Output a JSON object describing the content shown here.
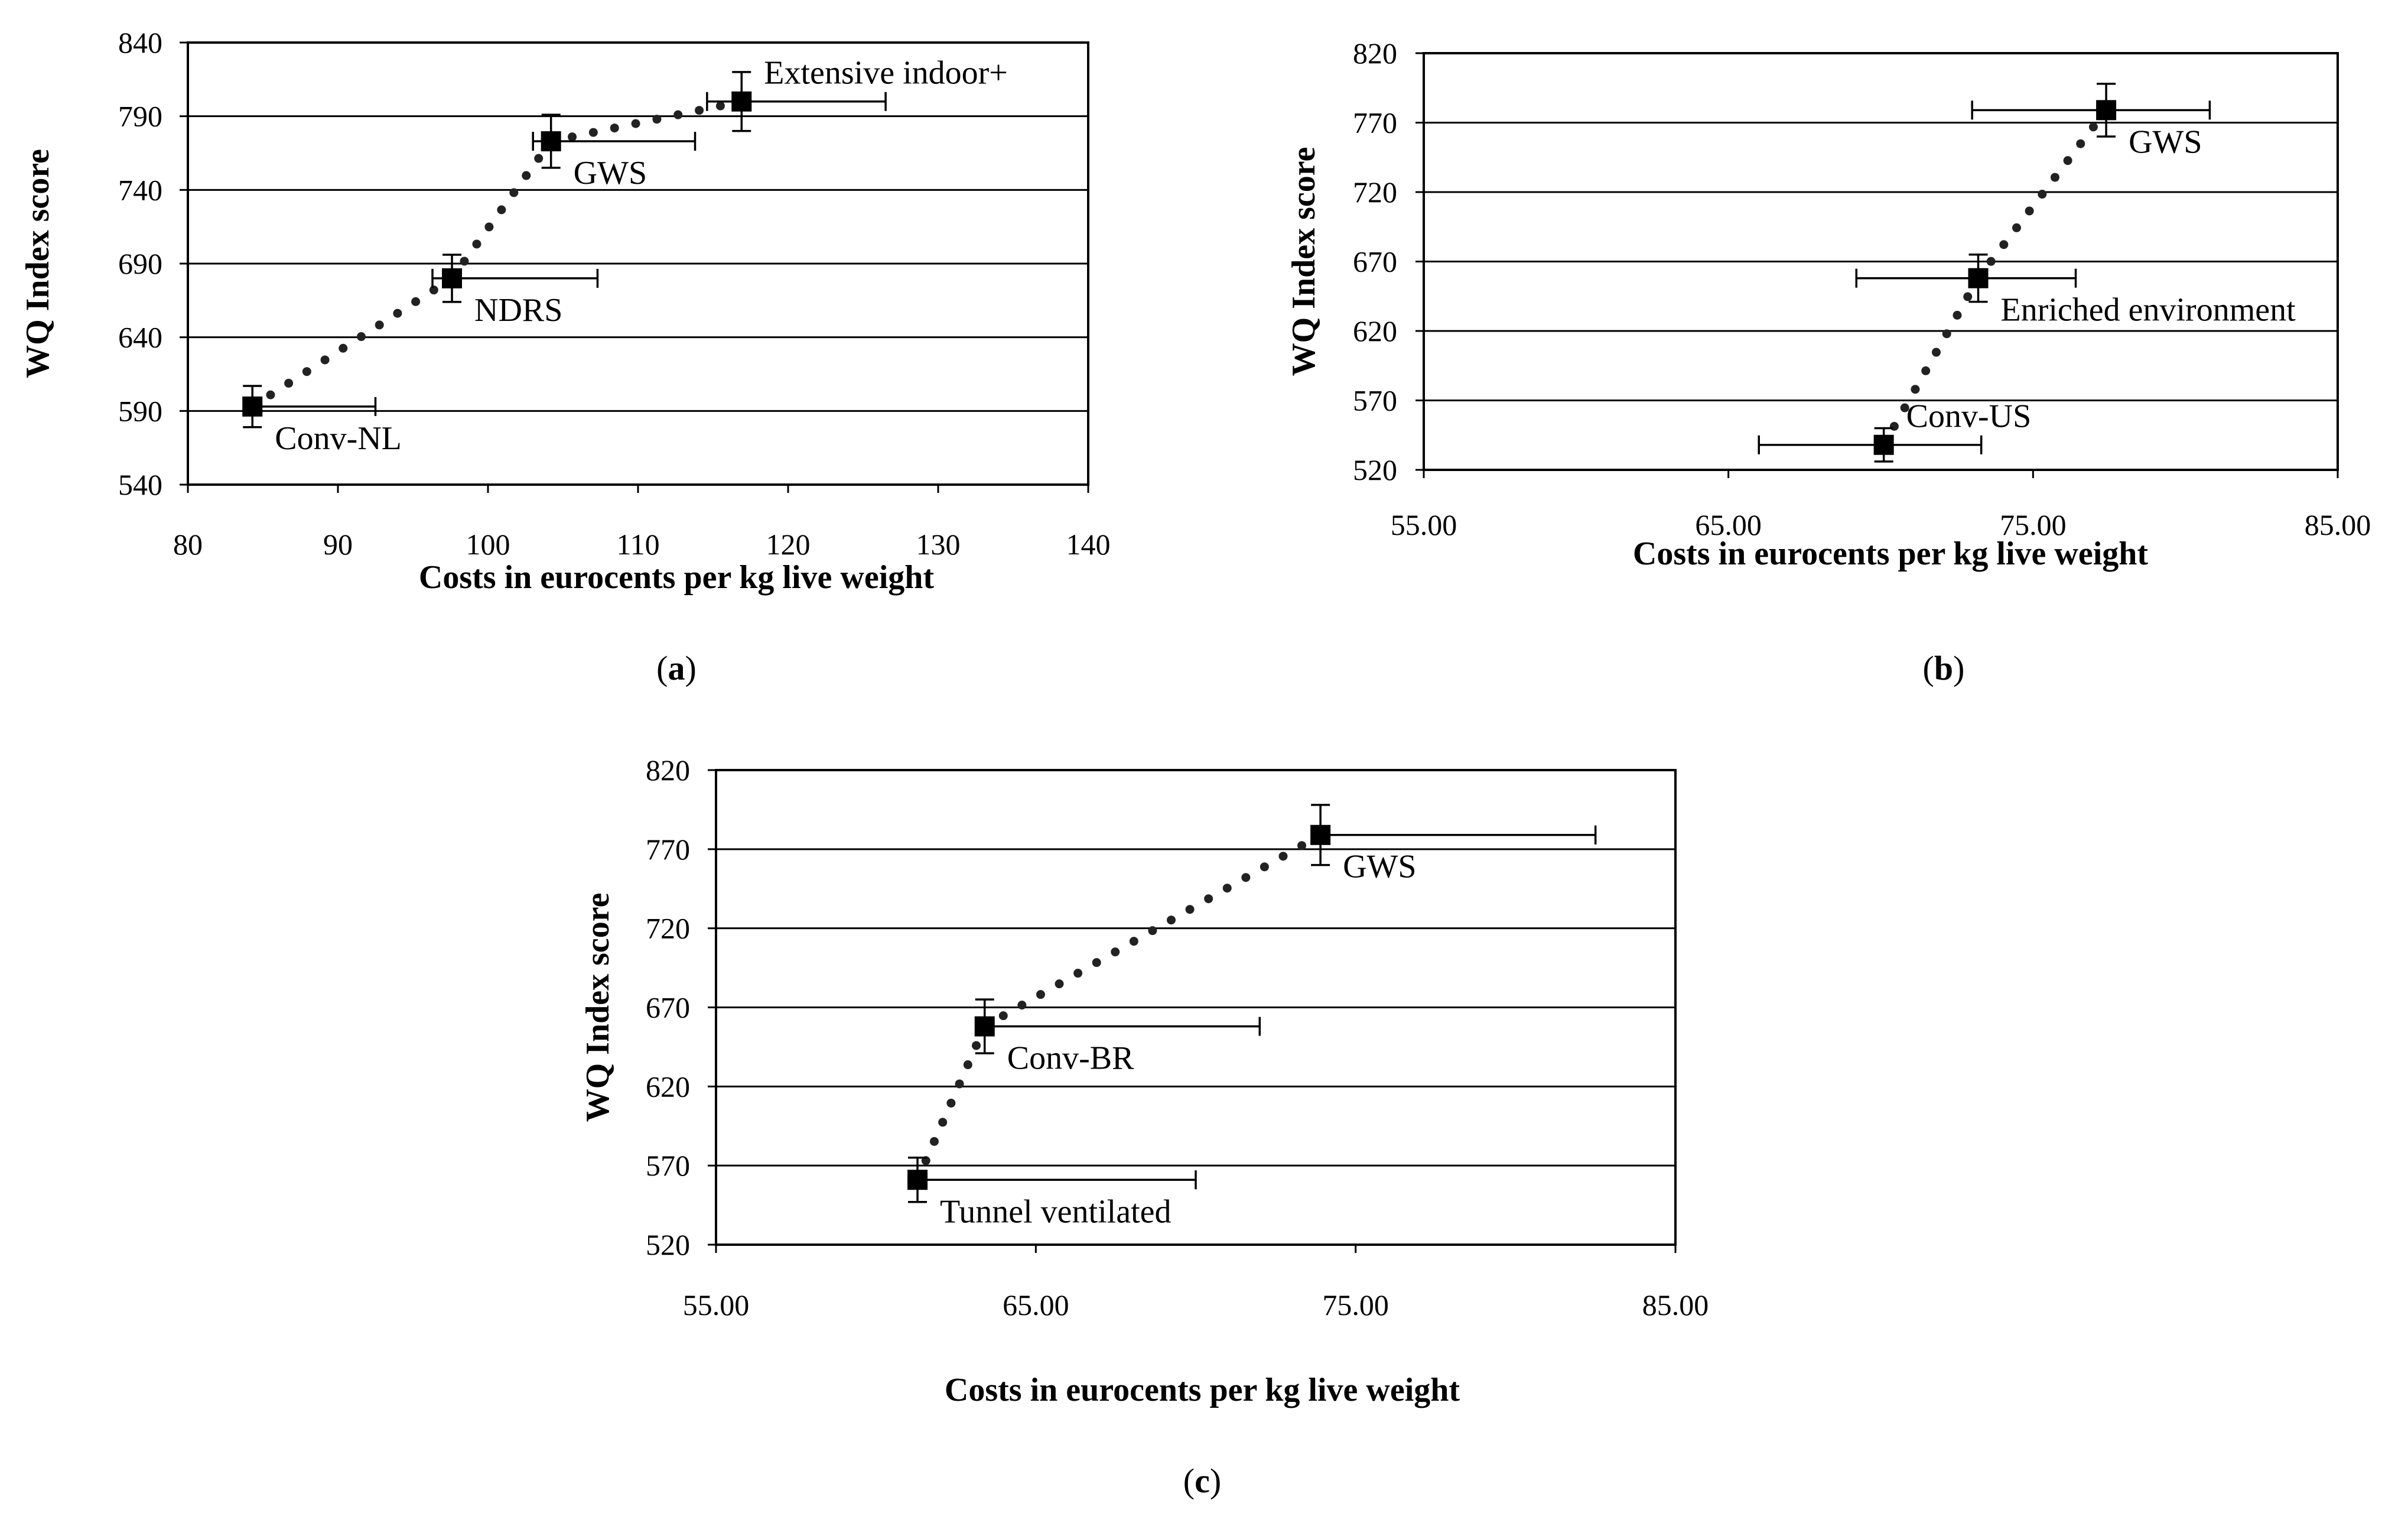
{
  "chart_data": [
    {
      "id": "a",
      "type": "scatter",
      "panel_label": "a",
      "xlabel": "Costs in eurocents per kg live weight",
      "ylabel": "WQ Index score",
      "xlim": [
        80,
        140
      ],
      "ylim": [
        540,
        840
      ],
      "xticks": [
        80,
        90,
        100,
        110,
        120,
        130,
        140
      ],
      "xtick_labels": [
        "80",
        "90",
        "100",
        "110",
        "120",
        "130",
        "140"
      ],
      "yticks": [
        540,
        590,
        640,
        690,
        740,
        790,
        840
      ],
      "ytick_labels": [
        "540",
        "590",
        "640",
        "690",
        "740",
        "790",
        "840"
      ],
      "horizontal_grid": true,
      "points": [
        {
          "label": "Conv-NL",
          "x": 84.3,
          "y": 593,
          "x_err": [
            0,
            8.2
          ],
          "y_err": [
            14,
            14
          ],
          "label_pos": "below-right"
        },
        {
          "label": "NDRS",
          "x": 97.6,
          "y": 680,
          "x_err": [
            1.3,
            9.7
          ],
          "y_err": [
            16,
            16
          ],
          "label_pos": "below-right"
        },
        {
          "label": "GWS",
          "x": 104.2,
          "y": 773,
          "x_err": [
            1.2,
            9.6
          ],
          "y_err": [
            18,
            18
          ],
          "label_pos": "below-right"
        },
        {
          "label": "Extensive indoor+",
          "x": 116.9,
          "y": 800,
          "x_err": [
            2.3,
            9.6
          ],
          "y_err": [
            20,
            20
          ],
          "label_pos": "above-right"
        }
      ],
      "frontier": "dotted"
    },
    {
      "id": "b",
      "type": "scatter",
      "panel_label": "b",
      "xlabel": "Costs in eurocents per kg live weight",
      "ylabel": "WQ Index score",
      "xlim": [
        55,
        85
      ],
      "ylim": [
        520,
        820
      ],
      "xticks": [
        55,
        65,
        75,
        85
      ],
      "xtick_labels": [
        "55.00",
        "65.00",
        "75.00",
        "85.00"
      ],
      "yticks": [
        520,
        570,
        620,
        670,
        720,
        770,
        820
      ],
      "ytick_labels": [
        "520",
        "570",
        "620",
        "670",
        "720",
        "770",
        "820"
      ],
      "horizontal_grid": true,
      "points": [
        {
          "label": "Conv-US",
          "x": 70.1,
          "y": 538,
          "x_err": [
            4.1,
            3.2
          ],
          "y_err": [
            12,
            12
          ],
          "label_pos": "above-right"
        },
        {
          "label": "Enriched environment",
          "x": 73.2,
          "y": 658,
          "x_err": [
            4.0,
            3.2
          ],
          "y_err": [
            17,
            17
          ],
          "label_pos": "below-right"
        },
        {
          "label": "GWS",
          "x": 77.4,
          "y": 779,
          "x_err": [
            4.4,
            3.4
          ],
          "y_err": [
            19,
            19
          ],
          "label_pos": "below-right"
        }
      ],
      "frontier": "dotted"
    },
    {
      "id": "c",
      "type": "scatter",
      "panel_label": "c",
      "xlabel": "Costs in eurocents per kg live weight",
      "ylabel": "WQ Index score",
      "xlim": [
        55,
        85
      ],
      "ylim": [
        520,
        820
      ],
      "xticks": [
        55,
        65,
        75,
        85
      ],
      "xtick_labels": [
        "55.00",
        "65.00",
        "75.00",
        "85.00"
      ],
      "yticks": [
        520,
        570,
        620,
        670,
        720,
        770,
        820
      ],
      "ytick_labels": [
        "520",
        "570",
        "620",
        "670",
        "720",
        "770",
        "820"
      ],
      "horizontal_grid": true,
      "points": [
        {
          "label": "Tunnel ventilated",
          "x": 61.3,
          "y": 561,
          "x_err": [
            0,
            8.7
          ],
          "y_err": [
            14,
            14
          ],
          "label_pos": "below-right"
        },
        {
          "label": "Conv-BR",
          "x": 63.4,
          "y": 658,
          "x_err": [
            0,
            8.6
          ],
          "y_err": [
            17,
            17
          ],
          "label_pos": "below-right"
        },
        {
          "label": "GWS",
          "x": 73.9,
          "y": 779,
          "x_err": [
            0,
            8.6
          ],
          "y_err": [
            19,
            19
          ],
          "label_pos": "below-right"
        }
      ],
      "frontier": "dotted"
    }
  ]
}
